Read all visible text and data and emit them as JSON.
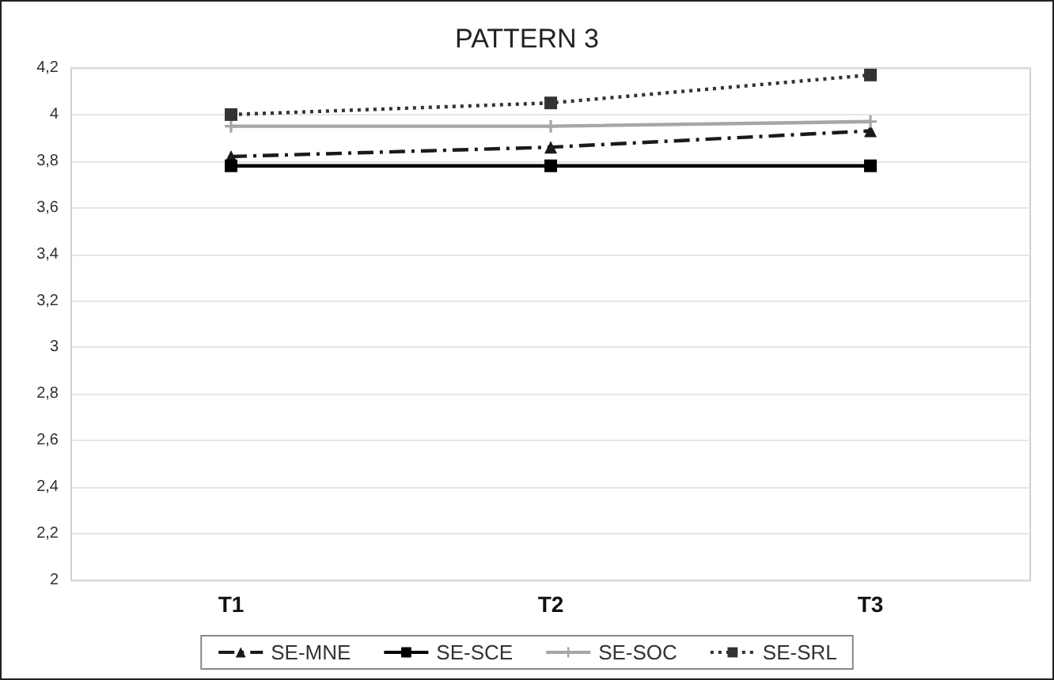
{
  "chart_data": {
    "type": "line",
    "title": "PATTERN 3",
    "categories": [
      "T1",
      "T2",
      "T3"
    ],
    "series": [
      {
        "name": "SE-MNE",
        "color": "#1a1a1a",
        "values": [
          3.82,
          3.86,
          3.93
        ],
        "marker": "triangle",
        "line_style": "dashed"
      },
      {
        "name": "SE-SCE",
        "color": "#000000",
        "values": [
          3.78,
          3.78,
          3.78
        ],
        "marker": "square",
        "line_style": "solid"
      },
      {
        "name": "SE-SOC",
        "color": "#a6a6a6",
        "values": [
          3.95,
          3.95,
          3.97
        ],
        "marker": "cross",
        "line_style": "solid"
      },
      {
        "name": "SE-SRL",
        "color": "#333333",
        "values": [
          4.0,
          4.05,
          4.17
        ],
        "marker": "square",
        "line_style": "dotted"
      }
    ],
    "ylim": [
      2,
      4.2
    ],
    "yticks": [
      2,
      {
        "value": 2.2,
        "label": "2,2"
      },
      {
        "value": 2.4,
        "label": "2,4"
      },
      {
        "value": 2.6,
        "label": "2,6"
      },
      {
        "value": 2.8,
        "label": "2,8"
      },
      3,
      {
        "value": 3.2,
        "label": "3,2"
      },
      {
        "value": 3.4,
        "label": "3,4"
      },
      {
        "value": 3.6,
        "label": "3,6"
      },
      {
        "value": 3.8,
        "label": "3,8"
      },
      4,
      {
        "value": 4.2,
        "label": "4,2"
      }
    ],
    "grid": "y",
    "legend": "bottom"
  }
}
